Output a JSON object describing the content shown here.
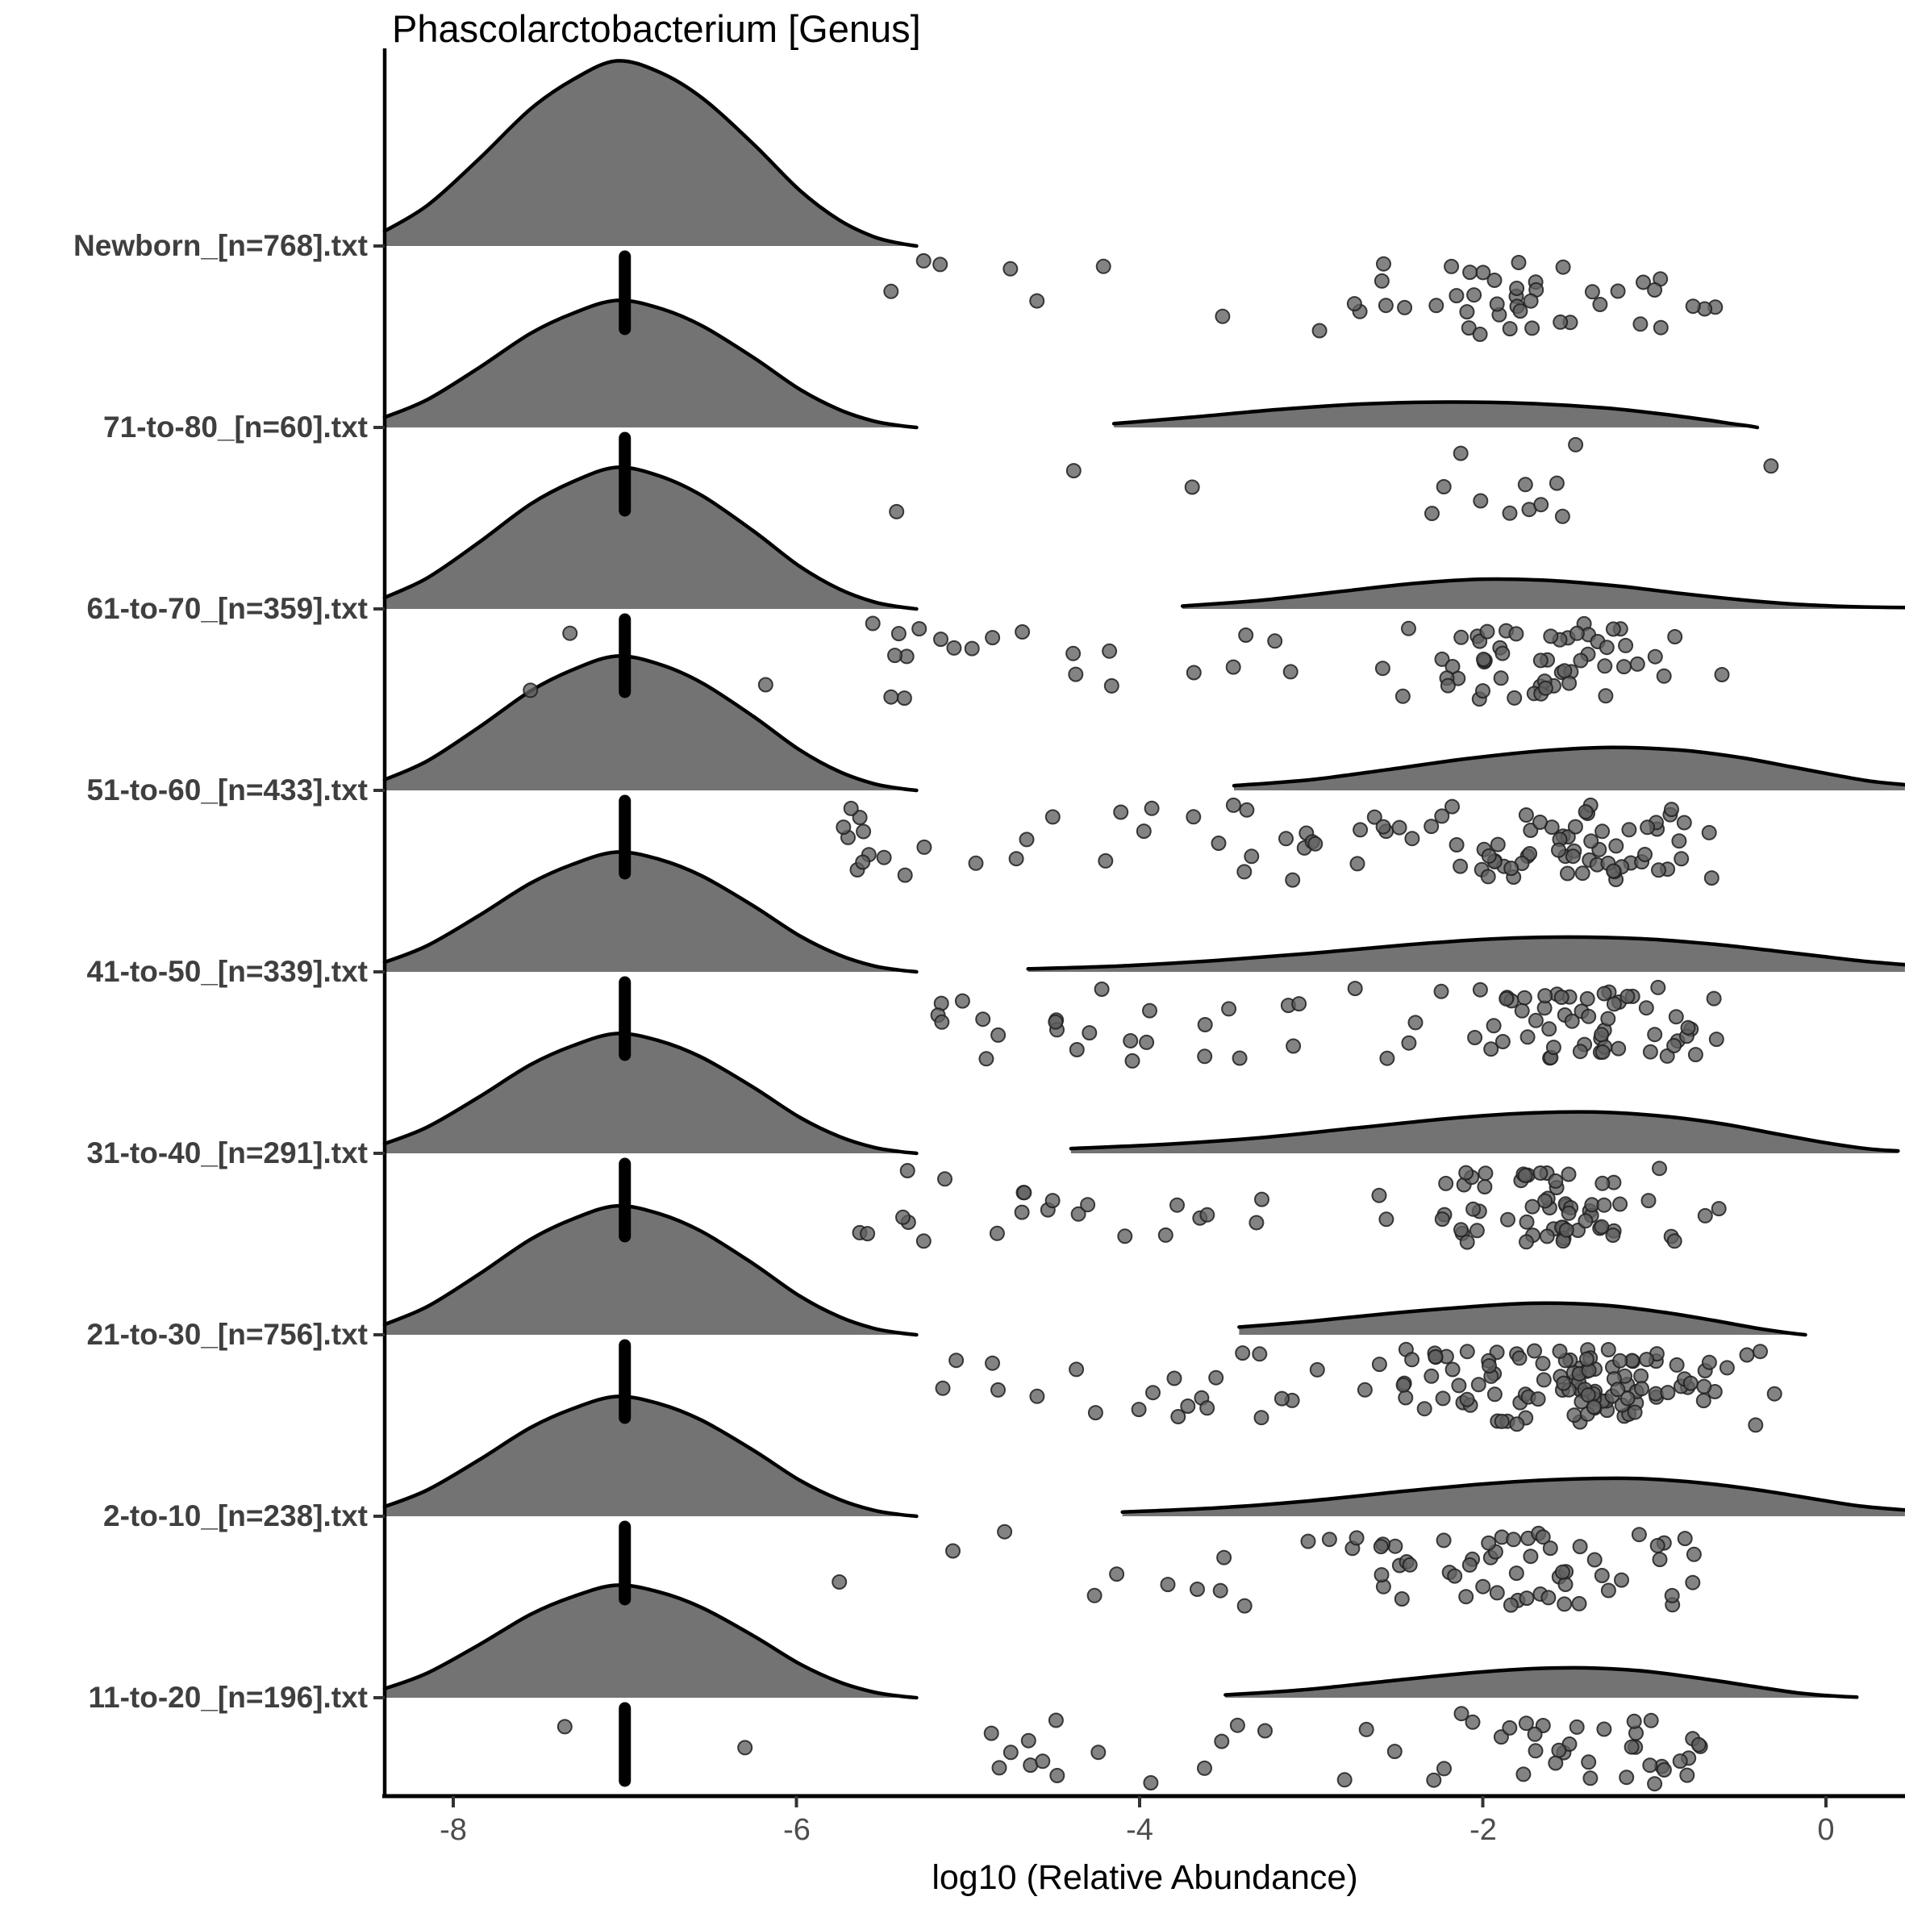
{
  "title": "Phascolarctobacterium [Genus]",
  "x_axis": {
    "label": "log10 (Relative Abundance)",
    "range": [
      -8.4,
      0.46
    ],
    "ticks": [
      {
        "value": -8,
        "label": "-8"
      },
      {
        "value": -6,
        "label": "-6"
      },
      {
        "value": -4,
        "label": "-4"
      },
      {
        "value": -2,
        "label": "-2"
      },
      {
        "value": 0,
        "label": "0"
      }
    ]
  },
  "style": {
    "fill_opacity": 0.55,
    "curve_stroke": "#000000",
    "curve_stroke_width": 4.5,
    "axis_color": "#000000",
    "tick_color": "#333333",
    "point_fill": "#606060",
    "point_stroke": "#1f1f1f",
    "point_radius": 8.5,
    "median_bar_color": "#000000",
    "median_bar_width": 15
  },
  "chart_data": {
    "type": "ridgeline_raincloud",
    "title": "Phascolarctobacterium [Genus]",
    "xlabel": "log10 (Relative Abundance)",
    "xlim": [
      -8.4,
      0.46
    ],
    "grid": false,
    "median_log10": -7.0,
    "left_density_profile": [
      [
        -8.4,
        0.08
      ],
      [
        -8.15,
        0.22
      ],
      [
        -7.85,
        0.47
      ],
      [
        -7.55,
        0.74
      ],
      [
        -7.3,
        0.9
      ],
      [
        -7.05,
        1.0
      ],
      [
        -6.8,
        0.94
      ],
      [
        -6.55,
        0.8
      ],
      [
        -6.25,
        0.55
      ],
      [
        -5.98,
        0.3
      ],
      [
        -5.75,
        0.14
      ],
      [
        -5.55,
        0.05
      ],
      [
        -5.4,
        0.015
      ],
      [
        -5.3,
        0.0
      ]
    ],
    "groups": [
      {
        "label": "Newborn_[n=768].txt",
        "sample_size": 768,
        "color": "#FF61C3",
        "ridge_amp": 1.02,
        "right_profile": null,
        "scatter": {
          "n": 50,
          "clusters": [
            [
              -1.55,
              0.5,
              0.75
            ],
            [
              -2.6,
              0.5,
              0.1
            ],
            [
              -4.8,
              0.75,
              0.15
            ]
          ],
          "min": -6.05,
          "max": -0.62,
          "outliers": [],
          "seed": 101
        }
      },
      {
        "label": "71-to-80_[n=60].txt",
        "sample_size": 60,
        "color": "#DB72FB",
        "ridge_amp": 0.7,
        "right_profile": [
          [
            -4.15,
            0.03
          ],
          [
            -3.7,
            0.08
          ],
          [
            -3.2,
            0.14
          ],
          [
            -2.7,
            0.185
          ],
          [
            -2.2,
            0.2
          ],
          [
            -1.75,
            0.19
          ],
          [
            -1.3,
            0.155
          ],
          [
            -0.95,
            0.105
          ],
          [
            -0.7,
            0.06
          ],
          [
            -0.55,
            0.03
          ],
          [
            -0.45,
            0.012
          ],
          [
            -0.4,
            0.0
          ]
        ],
        "scatter": {
          "n": 14,
          "clusters": [
            [
              -1.6,
              0.6,
              0.68
            ],
            [
              -4.9,
              0.75,
              0.32
            ]
          ],
          "min": -6.0,
          "max": -0.75,
          "outliers": [
            -0.32
          ],
          "seed": 202
        }
      },
      {
        "label": "61-to-70_[n=359].txt",
        "sample_size": 359,
        "color": "#619CFF",
        "ridge_amp": 0.78,
        "right_profile": [
          [
            -3.75,
            0.02
          ],
          [
            -3.3,
            0.06
          ],
          [
            -2.85,
            0.12
          ],
          [
            -2.4,
            0.18
          ],
          [
            -2.0,
            0.21
          ],
          [
            -1.6,
            0.2
          ],
          [
            -1.2,
            0.16
          ],
          [
            -0.85,
            0.11
          ],
          [
            -0.5,
            0.065
          ],
          [
            -0.2,
            0.035
          ],
          [
            0.05,
            0.02
          ],
          [
            0.3,
            0.012
          ],
          [
            0.46,
            0.01
          ]
        ],
        "scatter": {
          "n": 78,
          "clusters": [
            [
              -1.5,
              0.5,
              0.72
            ],
            [
              -3.5,
              0.75,
              0.16
            ],
            [
              -5.2,
              0.45,
              0.12
            ]
          ],
          "min": -6.2,
          "max": -0.55,
          "outliers": [
            -7.55,
            -7.32
          ],
          "seed": 303
        }
      },
      {
        "label": "51-to-60_[n=433].txt",
        "sample_size": 433,
        "color": "#00B9E3",
        "ridge_amp": 0.74,
        "right_profile": [
          [
            -3.45,
            0.035
          ],
          [
            -3.0,
            0.08
          ],
          [
            -2.55,
            0.155
          ],
          [
            -2.1,
            0.235
          ],
          [
            -1.65,
            0.295
          ],
          [
            -1.25,
            0.32
          ],
          [
            -0.85,
            0.3
          ],
          [
            -0.5,
            0.245
          ],
          [
            -0.2,
            0.175
          ],
          [
            0.05,
            0.115
          ],
          [
            0.25,
            0.07
          ],
          [
            0.46,
            0.042
          ]
        ],
        "scatter": {
          "n": 100,
          "clusters": [
            [
              -1.35,
              0.45,
              0.66
            ],
            [
              -2.5,
              0.7,
              0.16
            ],
            [
              -4.3,
              0.55,
              0.09
            ],
            [
              -5.55,
              0.3,
              0.09
            ]
          ],
          "min": -6.0,
          "max": -0.5,
          "outliers": [],
          "seed": 404
        }
      },
      {
        "label": "41-to-50_[n=339].txt",
        "sample_size": 339,
        "color": "#00C19F",
        "ridge_amp": 0.66,
        "right_profile": [
          [
            -4.65,
            0.025
          ],
          [
            -4.1,
            0.05
          ],
          [
            -3.55,
            0.095
          ],
          [
            -3.0,
            0.155
          ],
          [
            -2.45,
            0.225
          ],
          [
            -1.95,
            0.275
          ],
          [
            -1.5,
            0.29
          ],
          [
            -1.05,
            0.275
          ],
          [
            -0.65,
            0.23
          ],
          [
            -0.3,
            0.175
          ],
          [
            0.0,
            0.125
          ],
          [
            0.25,
            0.085
          ],
          [
            0.46,
            0.06
          ]
        ],
        "scatter": {
          "n": 85,
          "clusters": [
            [
              -1.35,
              0.5,
              0.72
            ],
            [
              -3.2,
              0.7,
              0.16
            ],
            [
              -4.8,
              0.45,
              0.12
            ]
          ],
          "min": -5.3,
          "max": -0.5,
          "outliers": [],
          "seed": 505
        }
      },
      {
        "label": "31-to-40_[n=291].txt",
        "sample_size": 291,
        "color": "#00BA38",
        "ridge_amp": 0.66,
        "right_profile": [
          [
            -4.4,
            0.04
          ],
          [
            -3.85,
            0.075
          ],
          [
            -3.3,
            0.13
          ],
          [
            -2.75,
            0.21
          ],
          [
            -2.2,
            0.29
          ],
          [
            -1.75,
            0.335
          ],
          [
            -1.35,
            0.345
          ],
          [
            -0.95,
            0.31
          ],
          [
            -0.6,
            0.245
          ],
          [
            -0.3,
            0.165
          ],
          [
            -0.05,
            0.1
          ],
          [
            0.15,
            0.055
          ],
          [
            0.3,
            0.03
          ],
          [
            0.42,
            0.02
          ]
        ],
        "scatter": {
          "n": 85,
          "clusters": [
            [
              -1.5,
              0.55,
              0.72
            ],
            [
              -3.3,
              0.8,
              0.18
            ],
            [
              -5.2,
              0.45,
              0.1
            ]
          ],
          "min": -5.9,
          "max": -0.55,
          "outliers": [],
          "seed": 606
        }
      },
      {
        "label": "21-to-30_[n=756].txt",
        "sample_size": 756,
        "color": "#93AA00",
        "ridge_amp": 0.71,
        "right_profile": [
          [
            -3.42,
            0.06
          ],
          [
            -3.0,
            0.105
          ],
          [
            -2.55,
            0.165
          ],
          [
            -2.1,
            0.215
          ],
          [
            -1.7,
            0.245
          ],
          [
            -1.3,
            0.23
          ],
          [
            -0.95,
            0.175
          ],
          [
            -0.65,
            0.11
          ],
          [
            -0.4,
            0.05
          ],
          [
            -0.22,
            0.015
          ],
          [
            -0.12,
            0.0
          ]
        ],
        "scatter": {
          "n": 135,
          "clusters": [
            [
              -1.5,
              0.5,
              0.78
            ],
            [
              -3.1,
              0.8,
              0.15
            ],
            [
              -4.7,
              0.4,
              0.07
            ]
          ],
          "min": -5.3,
          "max": -0.35,
          "outliers": [
            -0.3
          ],
          "seed": 707
        }
      },
      {
        "label": "2-to-10_[n=238].txt",
        "sample_size": 238,
        "color": "#D39200",
        "ridge_amp": 0.66,
        "right_profile": [
          [
            -4.1,
            0.035
          ],
          [
            -3.55,
            0.07
          ],
          [
            -3.0,
            0.13
          ],
          [
            -2.45,
            0.21
          ],
          [
            -1.95,
            0.275
          ],
          [
            -1.5,
            0.31
          ],
          [
            -1.1,
            0.315
          ],
          [
            -0.7,
            0.275
          ],
          [
            -0.35,
            0.21
          ],
          [
            -0.05,
            0.14
          ],
          [
            0.2,
            0.085
          ],
          [
            0.46,
            0.052
          ]
        ],
        "scatter": {
          "n": 66,
          "clusters": [
            [
              -1.6,
              0.55,
              0.7
            ],
            [
              -3.2,
              0.8,
              0.19
            ],
            [
              -4.5,
              0.5,
              0.11
            ]
          ],
          "min": -5.2,
          "max": -0.6,
          "outliers": [
            -5.75
          ],
          "seed": 808
        }
      },
      {
        "label": "11-to-20_[n=196].txt",
        "sample_size": 196,
        "color": "#F8766D",
        "ridge_amp": 0.62,
        "right_profile": [
          [
            -3.5,
            0.025
          ],
          [
            -3.05,
            0.07
          ],
          [
            -2.6,
            0.14
          ],
          [
            -2.15,
            0.21
          ],
          [
            -1.75,
            0.255
          ],
          [
            -1.4,
            0.265
          ],
          [
            -1.05,
            0.235
          ],
          [
            -0.7,
            0.165
          ],
          [
            -0.4,
            0.095
          ],
          [
            -0.15,
            0.04
          ],
          [
            0.05,
            0.015
          ],
          [
            0.18,
            0.005
          ]
        ],
        "scatter": {
          "n": 52,
          "clusters": [
            [
              -1.5,
              0.5,
              0.75
            ],
            [
              -3.2,
              0.7,
              0.13
            ],
            [
              -4.6,
              0.5,
              0.12
            ]
          ],
          "min": -5.5,
          "max": -0.65,
          "outliers": [
            -7.35,
            -6.3
          ],
          "seed": 909
        }
      }
    ]
  }
}
